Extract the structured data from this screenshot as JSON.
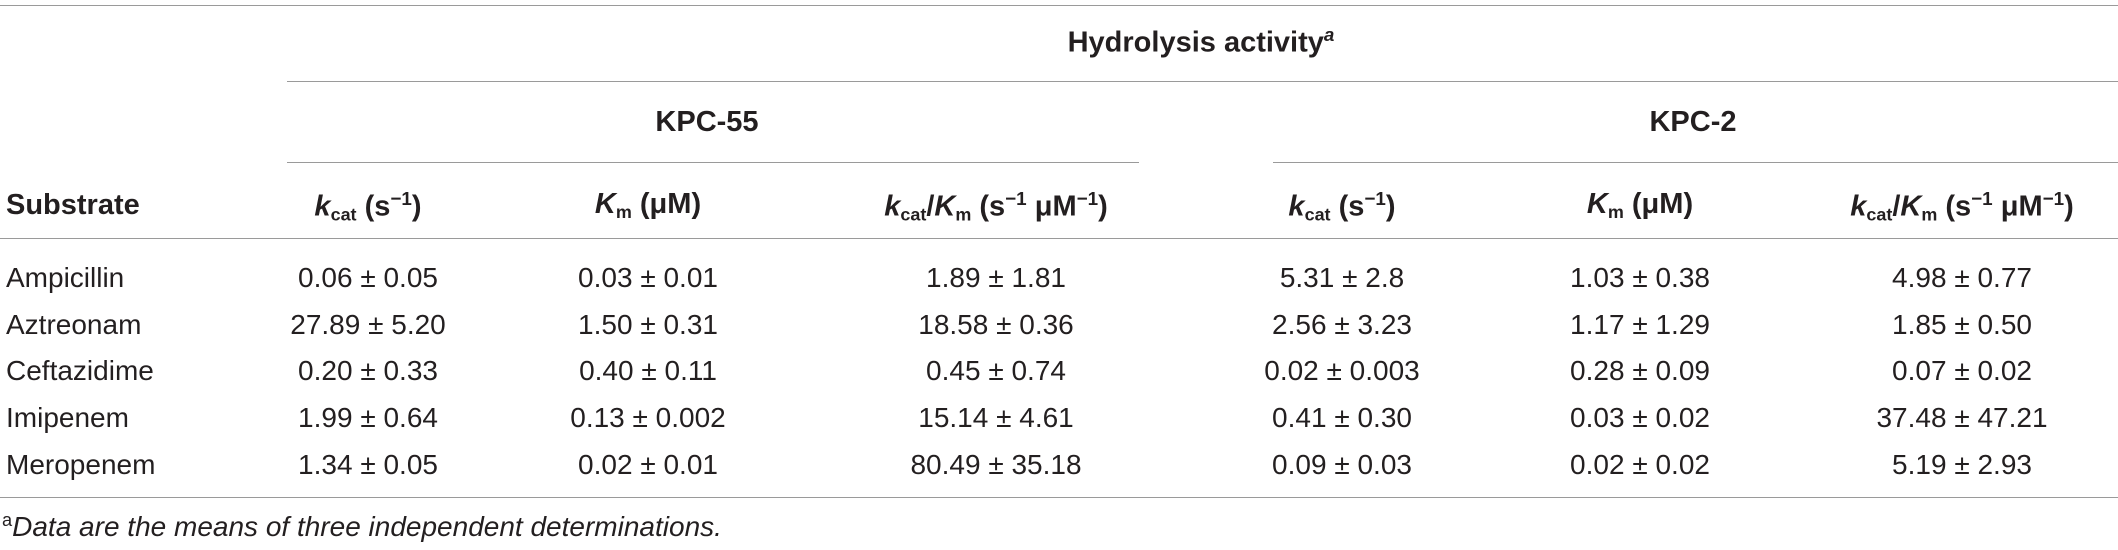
{
  "table": {
    "group_header": "Hydrolysis activity",
    "group_header_mark": "a",
    "subgroups": [
      "KPC-55",
      "KPC-2"
    ],
    "substrate_header": "Substrate",
    "col_headers": {
      "kcat_sym": "k",
      "kcat_sub": "cat",
      "kcat_unit": " (s",
      "kcat_unit_exp": "−1",
      "kcat_unit_close": ")",
      "km_sym": "K",
      "km_sub": "m",
      "km_unit": " (μM)",
      "ratio_slash": "/",
      "ratio_unit": " (s",
      "ratio_exp1": "−1",
      "ratio_mid": " μM",
      "ratio_exp2": "−1",
      "ratio_close": ")"
    },
    "rows": [
      {
        "substrate": "Ampicillin",
        "values": [
          "0.06 ± 0.05",
          "0.03 ± 0.01",
          "1.89 ± 1.81",
          "5.31 ± 2.8",
          "1.03 ± 0.38",
          "4.98 ± 0.77"
        ]
      },
      {
        "substrate": "Aztreonam",
        "values": [
          "27.89 ± 5.20",
          "1.50 ± 0.31",
          "18.58 ± 0.36",
          "2.56 ± 3.23",
          "1.17 ± 1.29",
          "1.85 ± 0.50"
        ]
      },
      {
        "substrate": "Ceftazidime",
        "values": [
          "0.20 ± 0.33",
          "0.40 ± 0.11",
          "0.45 ± 0.74",
          "0.02 ± 0.003",
          "0.28 ± 0.09",
          "0.07 ± 0.02"
        ]
      },
      {
        "substrate": "Imipenem",
        "values": [
          "1.99 ± 0.64",
          "0.13 ± 0.002",
          "15.14 ± 4.61",
          "0.41 ± 0.30",
          "0.03 ± 0.02",
          "37.48 ± 47.21"
        ]
      },
      {
        "substrate": "Meropenem",
        "values": [
          "1.34 ± 0.05",
          "0.02 ± 0.01",
          "80.49 ± 35.18",
          "0.09 ± 0.03",
          "0.02 ± 0.02",
          "5.19 ± 2.93"
        ]
      }
    ]
  },
  "footnote": {
    "mark": "a",
    "text": "Data are the means of three independent determinations."
  }
}
